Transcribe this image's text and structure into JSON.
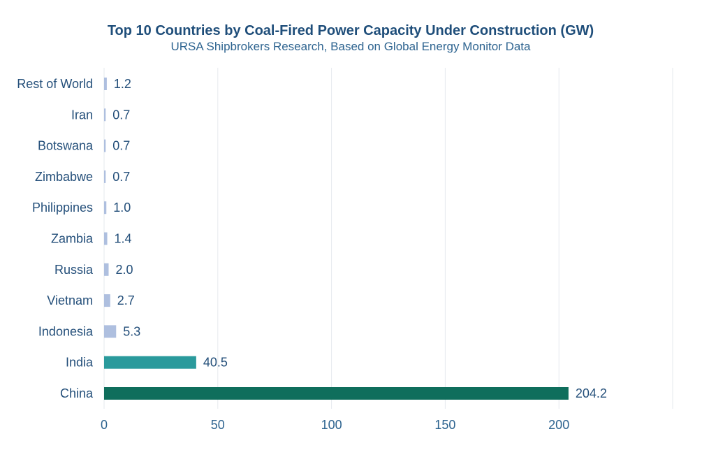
{
  "chart_data": {
    "type": "bar",
    "orientation": "horizontal",
    "title": "Top 10 Countries by Coal-Fired Power Capacity Under Construction (GW)",
    "subtitle": "URSA Shipbrokers Research, Based on Global Energy Monitor Data",
    "categories": [
      "Rest of World",
      "Iran",
      "Botswana",
      "Zimbabwe",
      "Philippines",
      "Zambia",
      "Russia",
      "Vietnam",
      "Indonesia",
      "India",
      "China"
    ],
    "values": [
      1.2,
      0.7,
      0.7,
      0.7,
      1.0,
      1.4,
      2.0,
      2.7,
      5.3,
      40.5,
      204.2
    ],
    "value_labels": [
      "1.2",
      "0.7",
      "0.7",
      "0.7",
      "1.0",
      "1.4",
      "2.0",
      "2.7",
      "5.3",
      "40.5",
      "204.2"
    ],
    "bar_colors": [
      "#aebfdf",
      "#aebfdf",
      "#aebfdf",
      "#aebfdf",
      "#aebfdf",
      "#aebfdf",
      "#aebfdf",
      "#aebfdf",
      "#aebfdf",
      "#2a9a9c",
      "#0f6e5c"
    ],
    "x_ticks": [
      0,
      50,
      100,
      150,
      200
    ],
    "xlim": [
      0,
      250
    ],
    "xlabel": "",
    "ylabel": "",
    "grid": "vertical",
    "legend": "none"
  }
}
